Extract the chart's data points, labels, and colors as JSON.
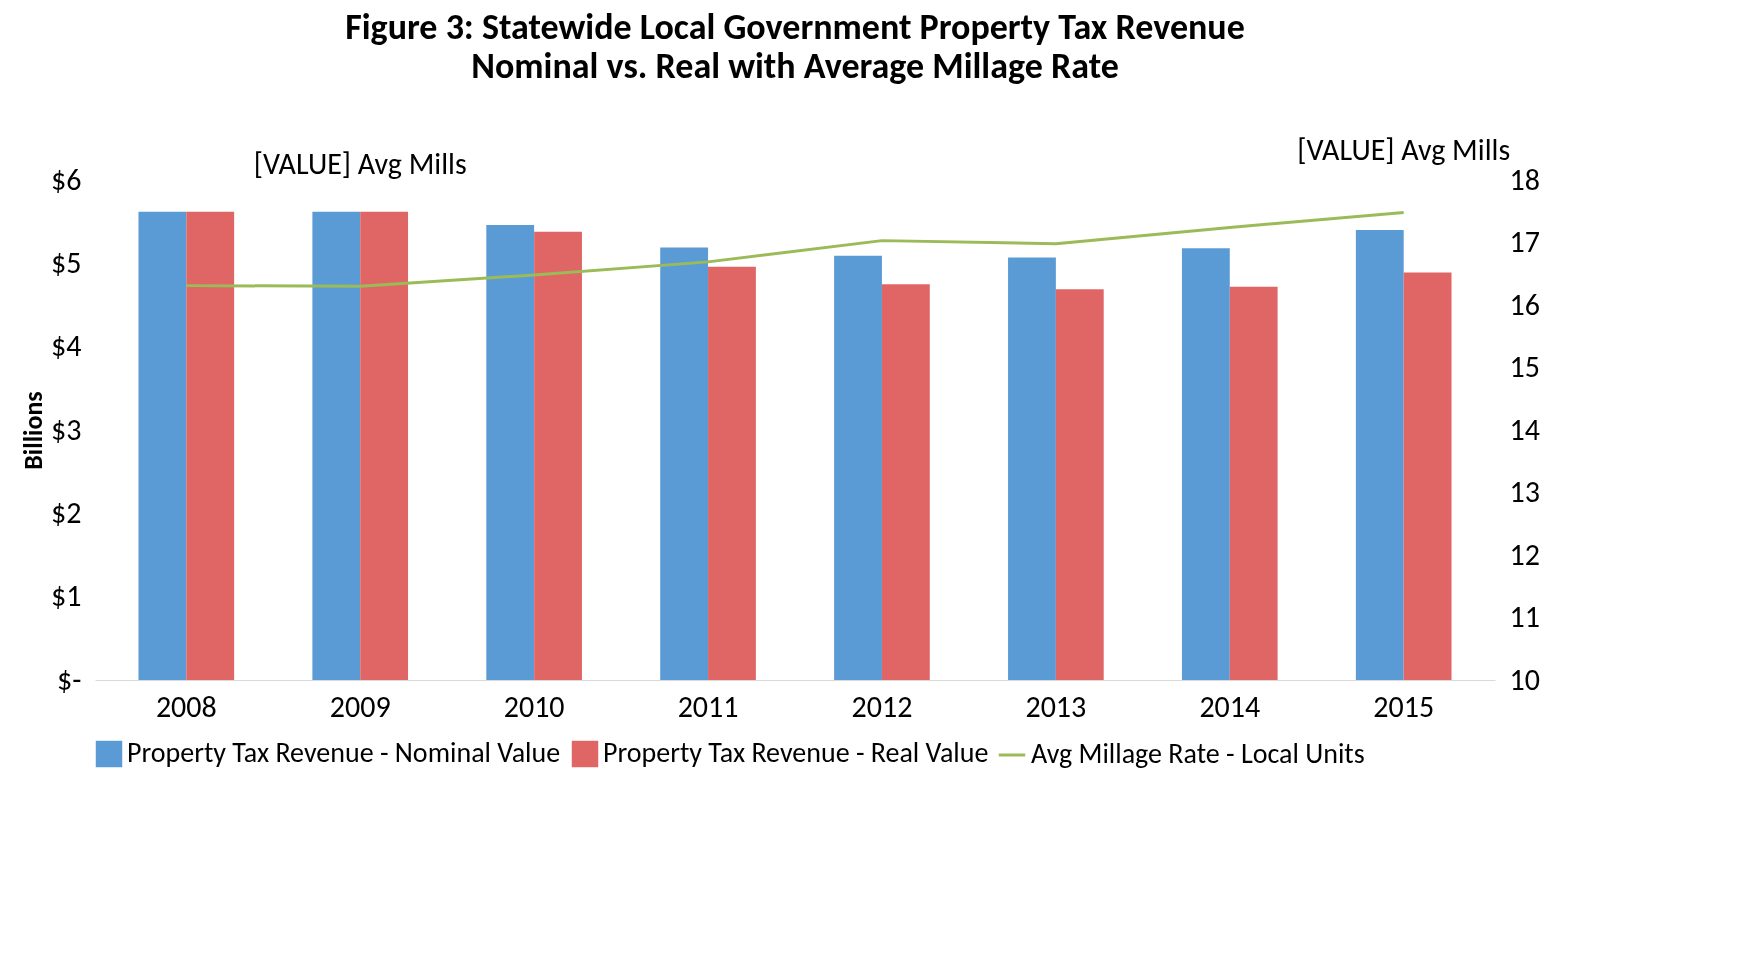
{
  "chart_data": {
    "type": "bar",
    "title": "Figure 3: Statewide Local Government Property Tax Revenue",
    "subtitle": "Nominal vs. Real with Average Millage Rate",
    "ylabel": "Billions",
    "categories": [
      "2008",
      "2009",
      "2010",
      "2011",
      "2012",
      "2013",
      "2014",
      "2015"
    ],
    "series": [
      {
        "name": "Property Tax Revenue - Nominal Value",
        "color": "#5b9bd5",
        "values": [
          5.62,
          5.62,
          5.46,
          5.19,
          5.09,
          5.07,
          5.18,
          5.4
        ]
      },
      {
        "name": "Property Tax Revenue - Real Value",
        "color": "#e06666",
        "values": [
          5.62,
          5.62,
          5.38,
          4.96,
          4.75,
          4.69,
          4.72,
          4.89
        ]
      },
      {
        "name": "Avg Millage Rate - Local Units",
        "type": "line",
        "axis": "y2",
        "color": "#9bbb59",
        "values": [
          16.31,
          16.3,
          16.48,
          16.69,
          17.03,
          16.98,
          17.24,
          17.48
        ]
      }
    ],
    "ylim": [
      0,
      6
    ],
    "yticks": [
      {
        "value": 0,
        "label": "$-"
      },
      {
        "value": 1,
        "label": "$1"
      },
      {
        "value": 2,
        "label": "$2"
      },
      {
        "value": 3,
        "label": "$3"
      },
      {
        "value": 4,
        "label": "$4"
      },
      {
        "value": 5,
        "label": "$5"
      },
      {
        "value": 6,
        "label": "$6"
      }
    ],
    "y2lim": [
      10,
      18
    ],
    "y2ticks": [
      10,
      11,
      12,
      13,
      14,
      15,
      16,
      17,
      18
    ],
    "annotations": [
      "[VALUE] Avg Mills",
      "[VALUE] Avg Mills"
    ],
    "legend": "bottom",
    "grid": false,
    "marker": "none"
  }
}
